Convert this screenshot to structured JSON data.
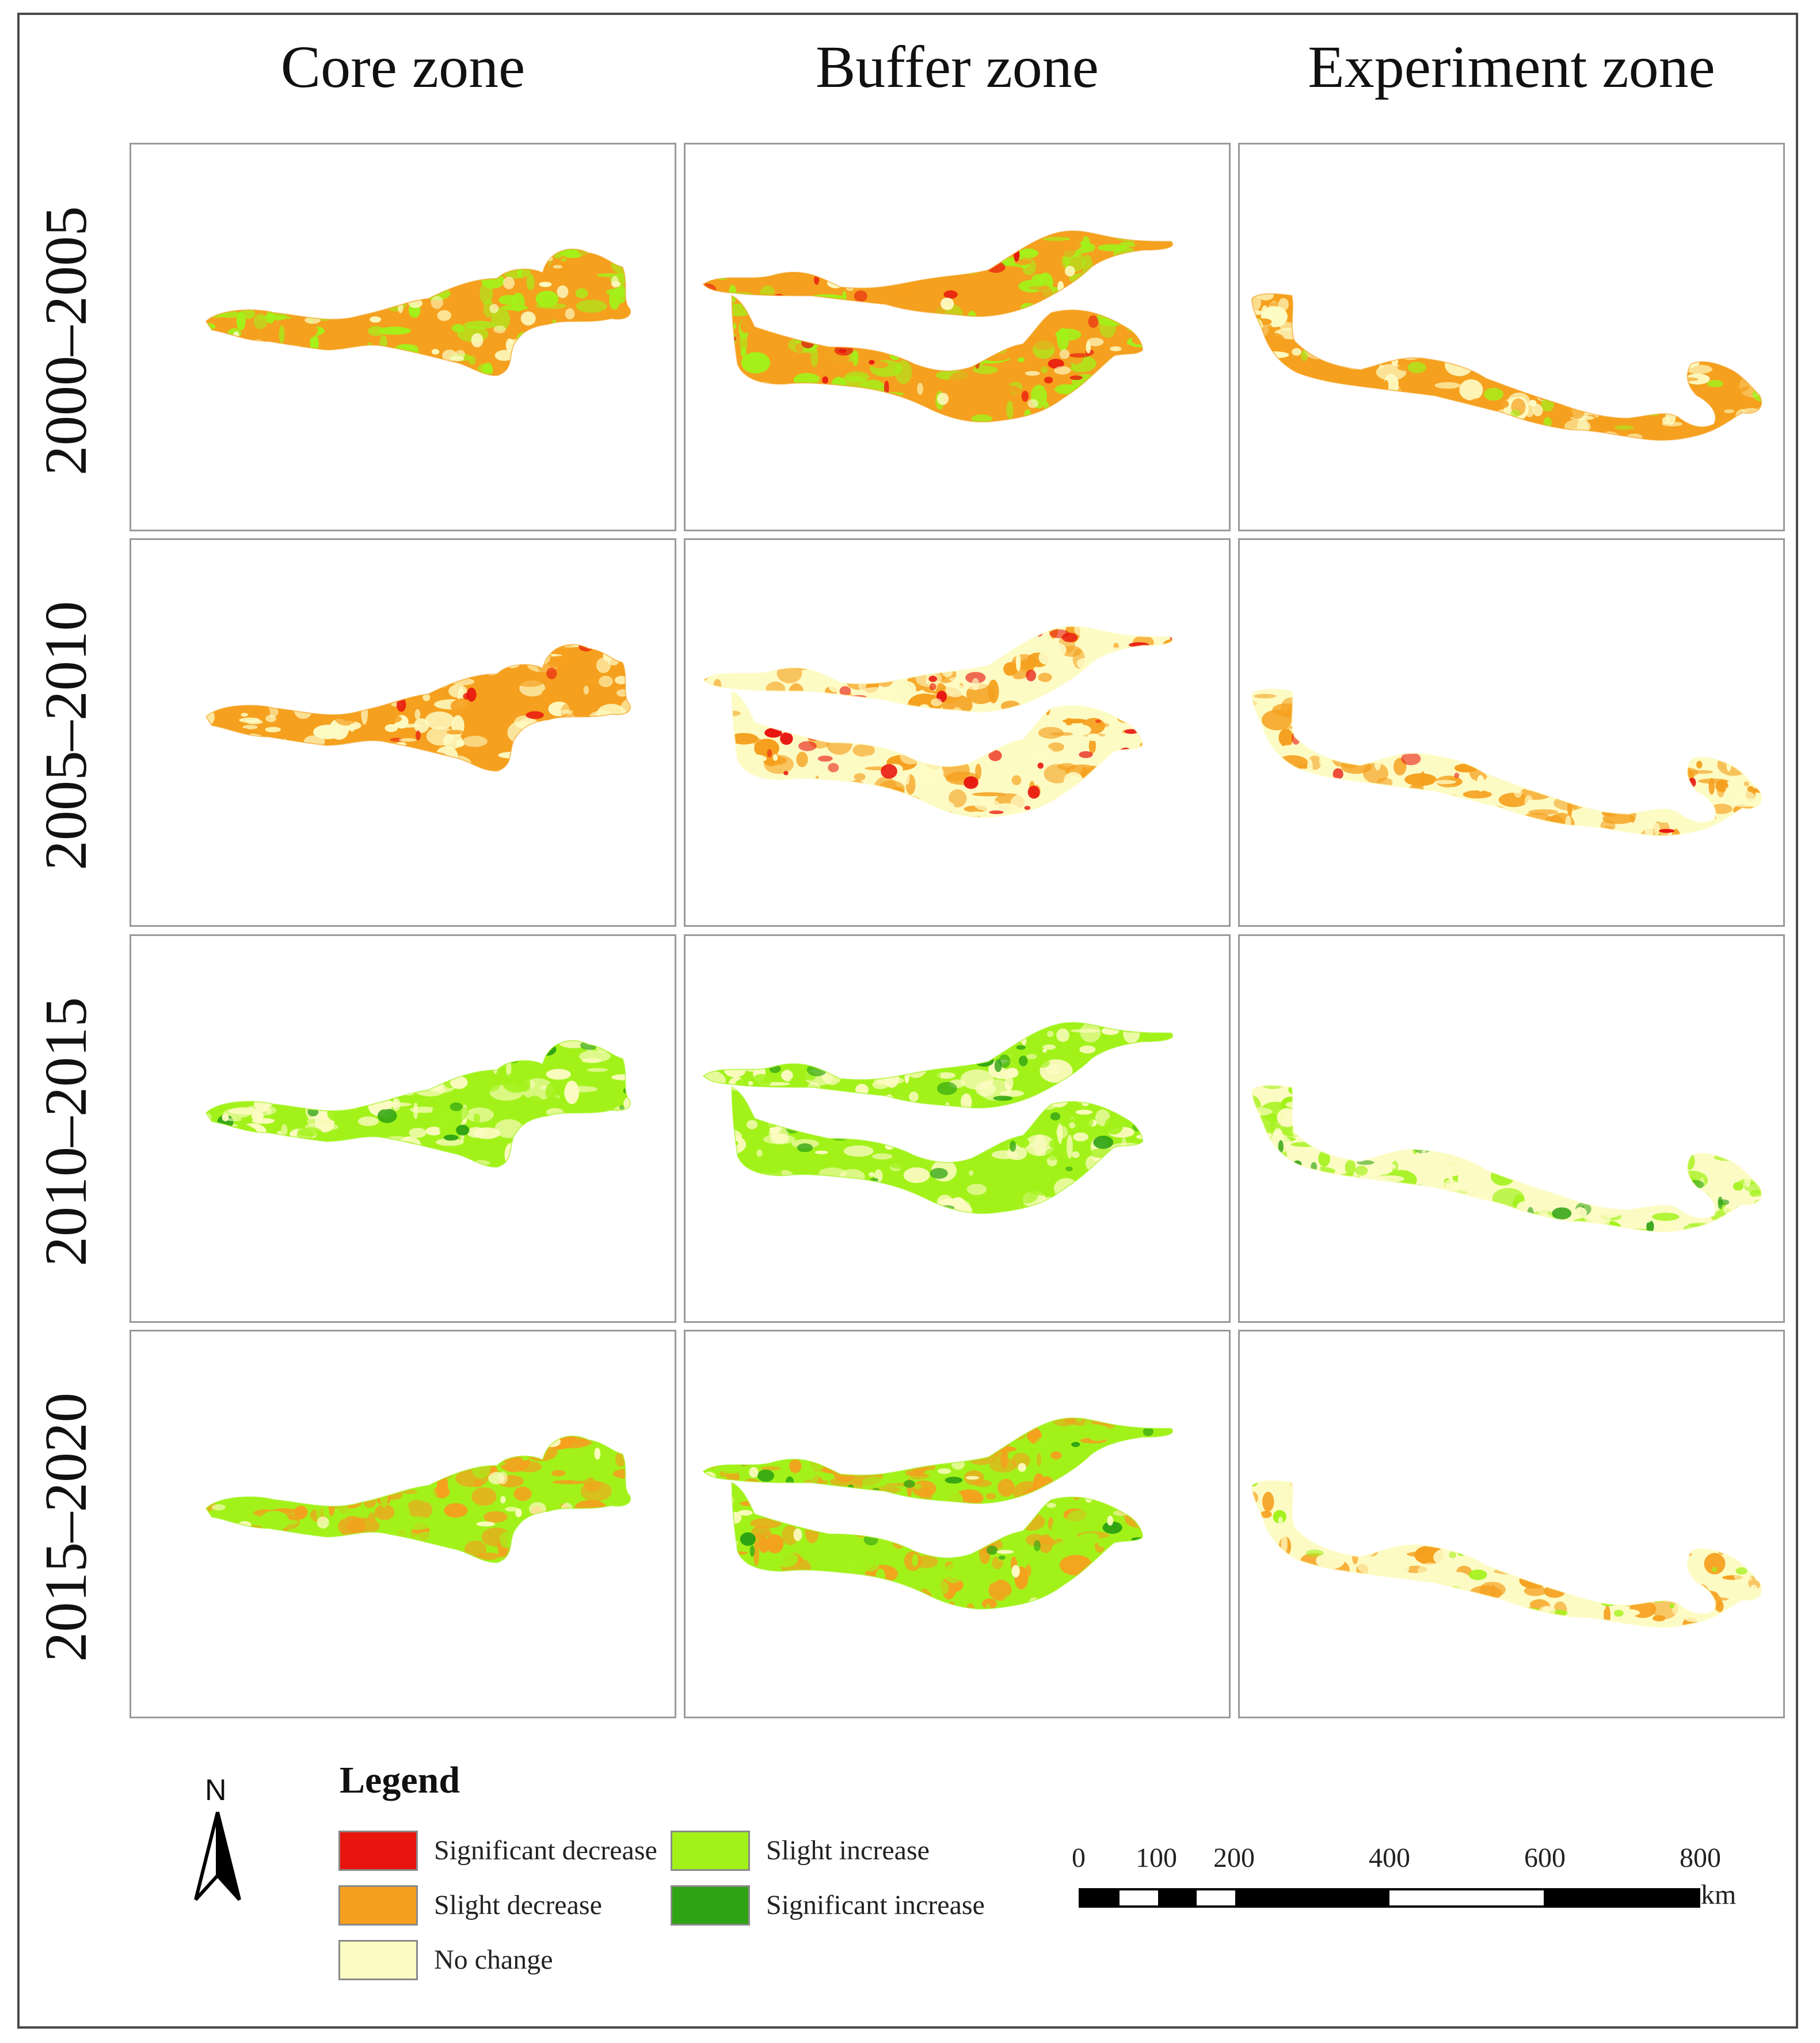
{
  "columns": [
    "Core zone",
    "Buffer zone",
    "Experiment zone"
  ],
  "rows": [
    "2000–2005",
    "2005–2010",
    "2010–2015",
    "2015–2020"
  ],
  "colors": {
    "significant_decrease": "#e8150f",
    "slight_decrease": "#f5a01e",
    "no_change": "#fdfbc4",
    "slight_increase": "#a2f21a",
    "significant_increase": "#2ea313"
  },
  "panels": [
    [
      {
        "dominant": "slight_decrease",
        "secondary": "slight_increase",
        "accent": "no_change"
      },
      {
        "dominant": "slight_decrease",
        "secondary": "slight_increase",
        "accent": "significant_decrease"
      },
      {
        "dominant": "slight_decrease",
        "secondary": "no_change",
        "accent": "slight_increase"
      }
    ],
    [
      {
        "dominant": "slight_decrease",
        "secondary": "no_change",
        "accent": "significant_decrease"
      },
      {
        "dominant": "no_change",
        "secondary": "slight_decrease",
        "accent": "significant_decrease"
      },
      {
        "dominant": "no_change",
        "secondary": "slight_decrease",
        "accent": "significant_decrease"
      }
    ],
    [
      {
        "dominant": "slight_increase",
        "secondary": "no_change",
        "accent": "significant_increase"
      },
      {
        "dominant": "slight_increase",
        "secondary": "no_change",
        "accent": "significant_increase"
      },
      {
        "dominant": "no_change",
        "secondary": "slight_increase",
        "accent": "significant_increase"
      }
    ],
    [
      {
        "dominant": "slight_increase",
        "secondary": "slight_decrease",
        "accent": "no_change"
      },
      {
        "dominant": "slight_increase",
        "secondary": "slight_decrease",
        "accent": "significant_increase"
      },
      {
        "dominant": "no_change",
        "secondary": "slight_decrease",
        "accent": "slight_increase"
      }
    ]
  ],
  "legend": {
    "title": "Legend",
    "items": [
      {
        "key": "significant_decrease",
        "label": "Significant decrease"
      },
      {
        "key": "slight_increase",
        "label": "Slight increase"
      },
      {
        "key": "slight_decrease",
        "label": "Slight decrease"
      },
      {
        "key": "significant_increase",
        "label": "Significant increase"
      },
      {
        "key": "no_change",
        "label": "No change"
      }
    ]
  },
  "north_arrow": {
    "label": "N"
  },
  "scale_bar": {
    "ticks": [
      "0",
      "100",
      "200",
      "400",
      "600",
      "800"
    ],
    "tick_values": [
      0,
      100,
      200,
      400,
      600,
      800
    ],
    "unit": "km"
  }
}
